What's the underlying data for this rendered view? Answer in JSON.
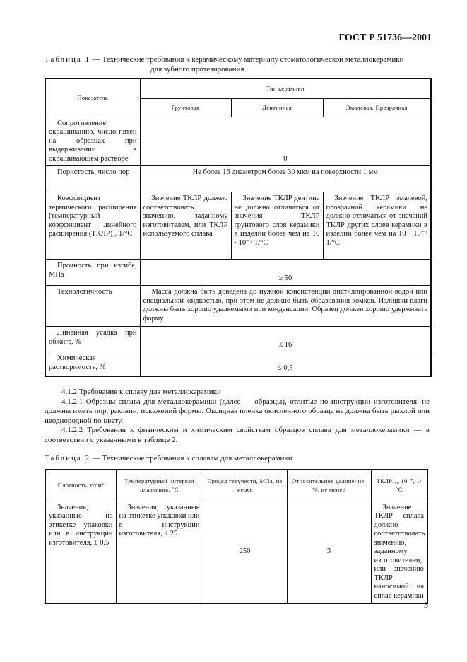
{
  "header": {
    "doc_code": "ГОСТ Р 51736—2001"
  },
  "table1": {
    "caption_label": "Таблица 1",
    "caption_text": " — Технические требования к керамическому материалу стоматологической металлокерамики",
    "caption_text2": "для зубного протезирования",
    "col_indicator": "Показатель",
    "col_type": "Тип керамики",
    "sub_cols": [
      "Грунтовая",
      "Дентинная",
      "Эмалевая, Прозрачная"
    ],
    "rows": [
      {
        "label": "Сопротивление окрашиванию, число пятен на образцах при выдерживании в окрашивающем растворе",
        "value": "0"
      },
      {
        "label": "Пористость, число пор",
        "value": "Не более 16 диаметром более 30 мкм на поверхности 1 мм"
      },
      {
        "label": "Коэффициент термического расширения [температурный коэффициент линейного расширения (ТКЛР)], 1/°С",
        "values": [
          "Значение ТКЛР должно соответствовать значению, заданному изготовителем, или ТКЛР используемого сплава",
          "Значение ТКЛР дентина не должно отличаться от значения ТКЛР грунтового слоя керамики в изделии более чем на 10 · 10⁻⁷ 1/°С",
          "Значение ТКЛР эмалевой, прозрачной керамики не должно отличаться от значений ТКЛР других слоев керамики в изделии более чем на 10 · 10⁻⁷ 1/°С"
        ]
      },
      {
        "label": "Прочность при изгибе, МПа",
        "value": "≥ 50"
      },
      {
        "label": "Технологичность",
        "value": "Масса должна быть доведена до нужной консистенции дистиллированной водой или специальной жидкостью, при этом не должно быть образования комков. Излишки влаги должны быть хорошо удаляемыми при конденсации. Образец должен хорошо удерживать форму"
      },
      {
        "label": "Линейная усадка при обжиге, %",
        "value": "≤ 16"
      },
      {
        "label": "Химическая растворимость, %",
        "value": "≤ 0,5"
      }
    ]
  },
  "paragraphs": [
    "4.1.2 Требования к сплаву для металлокерамики",
    "4.1.2.1 Образцы сплава для металлокерамики (далее — образцы), отлитые по инструкции изготовителя, не должны иметь пор, раковин, искажений формы. Оксидная пленка окисленного образца не должна быть рыхлой или неоднородной по цвету.",
    "4.1.2.2 Требования к физическим и химическим свойствам образцов сплава для металлокерамики — в соответствии с указанными в таблице 2."
  ],
  "table2": {
    "caption_label": "Таблица 2",
    "caption_text": " — Технические требования к сплавам для металлокерамики",
    "headers": [
      "Плотность, г/см³",
      "Температурный интервал плавления, °С",
      "Предел текучести, МПа, не менее",
      "Относительное удлинение, %, не менее",
      "ТКЛР₅₀₀ 10⁻⁷, 1/°С"
    ],
    "row": [
      "Значения, указанные на этикетке упаковки или в инструкции изготовителя, ± 0,5",
      "Значения, указанные на этикетке упаковки или в инструкции изготовителя, ± 25",
      "250",
      "3",
      "Значение ТКЛР сплава должно соответствовать значению, заданному изготовителем, или значению ТКЛР наносимой на сплав керамики"
    ]
  },
  "page_number": "3"
}
